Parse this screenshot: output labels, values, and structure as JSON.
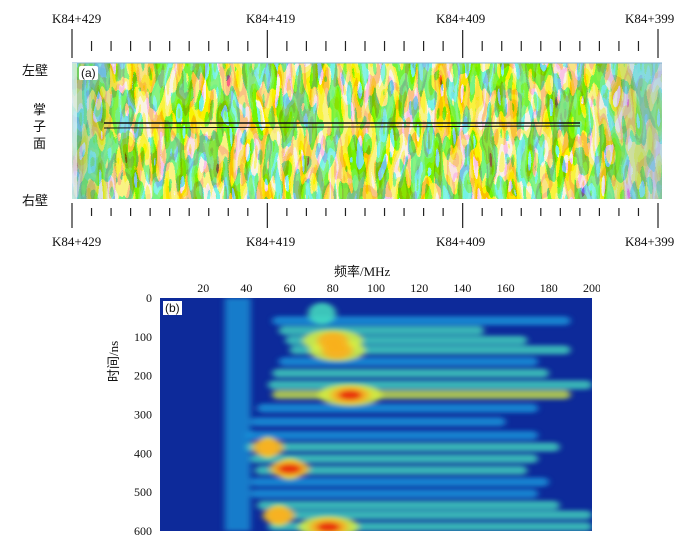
{
  "figure_a": {
    "panel_label": "(a)",
    "top_chainage": [
      "K84+429",
      "K84+419",
      "K84+409",
      "K84+399"
    ],
    "bottom_chainage": [
      "K84+429",
      "K84+419",
      "K84+409",
      "K84+399"
    ],
    "left_wall": "左壁",
    "face_label_1": "掌",
    "face_label_2": "子",
    "face_label_3": "面",
    "right_wall": "右壁",
    "colors": {
      "green": "#2e8b3a",
      "yellow": "#f2e400",
      "cyan": "#3fc4c8",
      "blue": "#1d3fb4",
      "red": "#d81e1e"
    }
  },
  "chart_data": {
    "type": "heatmap",
    "panel_label": "(b)",
    "title": "",
    "xlabel": "频率/MHz",
    "ylabel": "时间/ns",
    "x_ticks": [
      20,
      40,
      60,
      80,
      100,
      120,
      140,
      160,
      180,
      200
    ],
    "y_ticks": [
      0,
      100,
      200,
      300,
      400,
      500,
      600
    ],
    "xlim": [
      0,
      200
    ],
    "ylim": [
      0,
      600
    ],
    "colormap": [
      "#0a1e7c",
      "#1a3fc0",
      "#1a9fe0",
      "#46e0c0",
      "#d8f040",
      "#f8b020",
      "#e83010",
      "#a00000"
    ],
    "hot_spots": [
      {
        "freq": 60,
        "time": 440,
        "intensity": "max"
      },
      {
        "freq": 78,
        "time": 590,
        "intensity": "max"
      },
      {
        "freq": 88,
        "time": 250,
        "intensity": "max"
      },
      {
        "freq": 80,
        "time": 110,
        "intensity": "high"
      },
      {
        "freq": 82,
        "time": 135,
        "intensity": "high"
      },
      {
        "freq": 50,
        "time": 385,
        "intensity": "high"
      },
      {
        "freq": 55,
        "time": 560,
        "intensity": "high"
      }
    ]
  }
}
